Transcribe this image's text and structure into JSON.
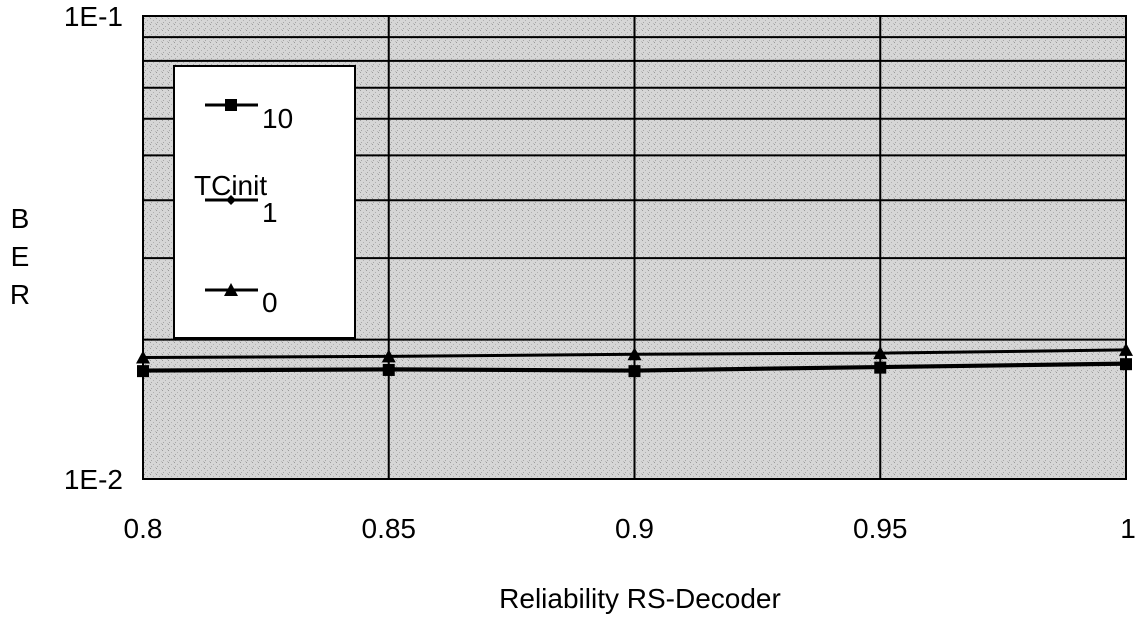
{
  "chart_data": {
    "type": "line",
    "title": "",
    "xlabel": "Reliability RS-Decoder",
    "ylabel": "BER",
    "yscale": "log",
    "xlim": [
      0.8,
      1.0
    ],
    "ylim": [
      0.01,
      0.1
    ],
    "x_ticks": [
      "0.8",
      "0.85",
      "0.9",
      "0.95",
      "1"
    ],
    "y_ticks": [
      {
        "value": 0.1,
        "label": "1E-1"
      },
      {
        "value": 0.01,
        "label": "1E-2"
      }
    ],
    "grid": true,
    "legend": {
      "title": "TCinit",
      "placement": "top-left"
    },
    "series": [
      {
        "name": "10",
        "marker": "square",
        "x": [
          0.8,
          0.85,
          0.9,
          0.95,
          1.0
        ],
        "y": [
          0.0171,
          0.0172,
          0.0171,
          0.0174,
          0.0177
        ]
      },
      {
        "name": "1",
        "marker": "diamond",
        "x": [
          0.8,
          0.85,
          0.9,
          0.95,
          1.0
        ],
        "y": [
          0.0172,
          0.0173,
          0.0172,
          0.0175,
          0.0178
        ]
      },
      {
        "name": "0",
        "marker": "triangle",
        "x": [
          0.8,
          0.85,
          0.9,
          0.95,
          1.0
        ],
        "y": [
          0.0183,
          0.0184,
          0.0186,
          0.0187,
          0.019
        ]
      }
    ]
  }
}
